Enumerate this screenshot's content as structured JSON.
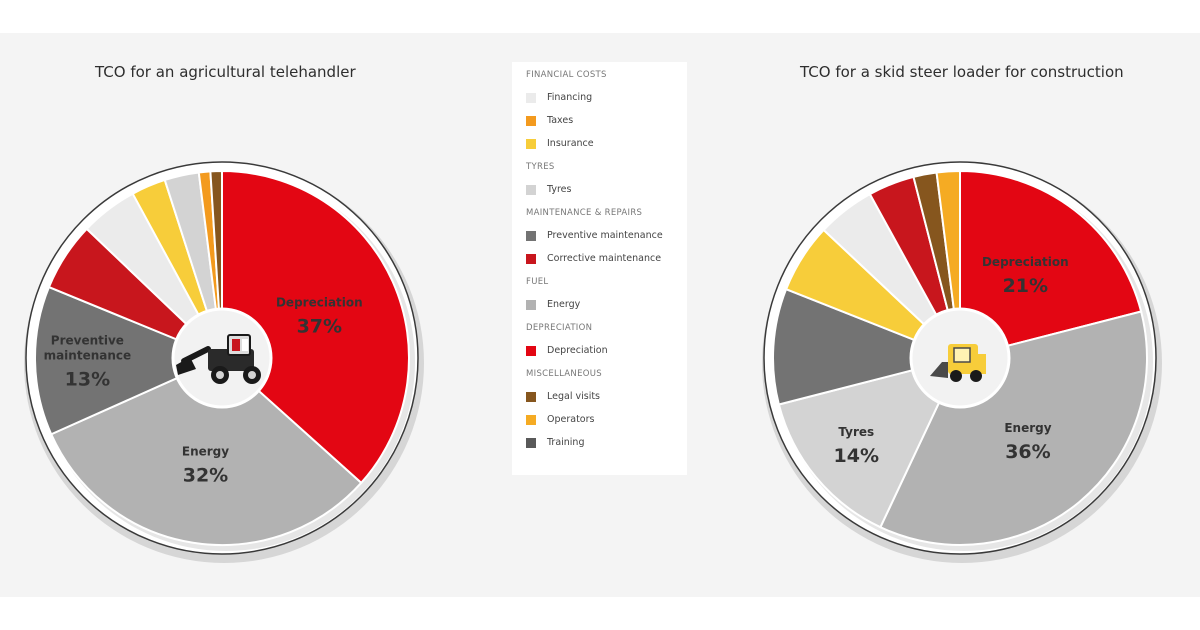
{
  "colors": {
    "financing": "#ebebeb",
    "taxes": "#f39a1e",
    "insurance": "#f7cd3a",
    "tyres": "#d3d3d3",
    "preventive": "#737373",
    "corrective": "#c8161d",
    "energy": "#b2b2b2",
    "depreciation": "#e30613",
    "legal": "#86561e",
    "operators": "#f5ab23",
    "training": "#595959"
  },
  "legend": {
    "groups": [
      {
        "title": "FINANCIAL COSTS",
        "items": [
          {
            "label": "Financing",
            "color_key": "financing"
          },
          {
            "label": "Taxes",
            "color_key": "taxes"
          },
          {
            "label": "Insurance",
            "color_key": "insurance"
          }
        ]
      },
      {
        "title": "TYRES",
        "items": [
          {
            "label": "Tyres",
            "color_key": "tyres"
          }
        ]
      },
      {
        "title": "MAINTENANCE & REPAIRS",
        "items": [
          {
            "label": "Preventive maintenance",
            "color_key": "preventive"
          },
          {
            "label": "Corrective maintenance",
            "color_key": "corrective"
          }
        ]
      },
      {
        "title": "FUEL",
        "items": [
          {
            "label": "Energy",
            "color_key": "energy"
          }
        ]
      },
      {
        "title": "DEPRECIATION",
        "items": [
          {
            "label": "Depreciation",
            "color_key": "depreciation"
          }
        ]
      },
      {
        "title": "MISCELLANEOUS",
        "items": [
          {
            "label": "Legal visits",
            "color_key": "legal"
          },
          {
            "label": "Operators",
            "color_key": "operators"
          },
          {
            "label": "Training",
            "color_key": "training"
          }
        ]
      }
    ]
  },
  "chart_data": [
    {
      "type": "pie",
      "title": "TCO for an agricultural telehandler",
      "unit": "%",
      "slices": [
        {
          "name": "Depreciation",
          "value": 37,
          "color_key": "depreciation",
          "label": "Depreciation",
          "value_label": "37%"
        },
        {
          "name": "Energy",
          "value": 32,
          "color_key": "energy",
          "label": "Energy",
          "value_label": "32%"
        },
        {
          "name": "Preventive maintenance",
          "value": 13,
          "color_key": "preventive",
          "label": "Preventive maintenance",
          "value_label": "13%"
        },
        {
          "name": "Corrective maintenance",
          "value": 6,
          "color_key": "corrective"
        },
        {
          "name": "Financing",
          "value": 5,
          "color_key": "financing"
        },
        {
          "name": "Insurance",
          "value": 3,
          "color_key": "insurance"
        },
        {
          "name": "Tyres",
          "value": 3,
          "color_key": "tyres"
        },
        {
          "name": "Taxes",
          "value": 1,
          "color_key": "taxes"
        },
        {
          "name": "Legal visits",
          "value": 1,
          "color_key": "legal"
        }
      ]
    },
    {
      "type": "pie",
      "title": "TCO for a skid steer loader for construction",
      "unit": "%",
      "slices": [
        {
          "name": "Depreciation",
          "value": 21,
          "color_key": "depreciation",
          "label": "Depreciation",
          "value_label": "21%"
        },
        {
          "name": "Energy",
          "value": 36,
          "color_key": "energy",
          "label": "Energy",
          "value_label": "36%"
        },
        {
          "name": "Tyres",
          "value": 14,
          "color_key": "tyres",
          "label": "Tyres",
          "value_label": "14%"
        },
        {
          "name": "Preventive maintenance",
          "value": 10,
          "color_key": "preventive"
        },
        {
          "name": "Insurance",
          "value": 6,
          "color_key": "insurance"
        },
        {
          "name": "Financing",
          "value": 5,
          "color_key": "financing"
        },
        {
          "name": "Corrective maintenance",
          "value": 4,
          "color_key": "corrective"
        },
        {
          "name": "Legal visits",
          "value": 2,
          "color_key": "legal"
        },
        {
          "name": "Operators",
          "value": 2,
          "color_key": "operators"
        }
      ]
    }
  ]
}
